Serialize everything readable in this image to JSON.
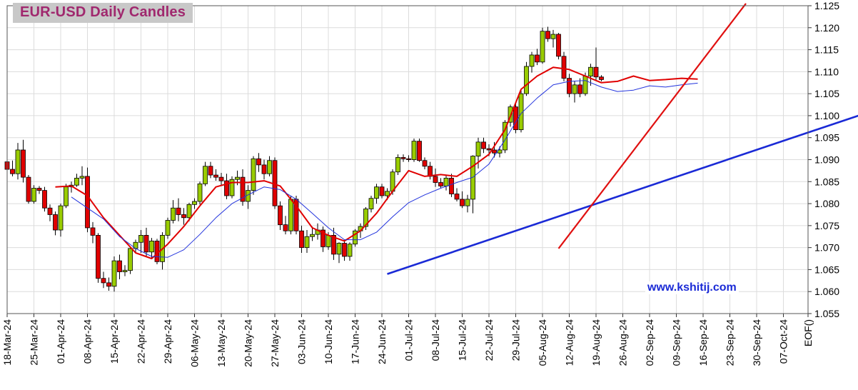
{
  "chart_data": {
    "type": "candlestick",
    "title": "EUR-USD Daily  Candles",
    "watermark": "www.kshitij.com",
    "xlabel": "",
    "ylabel": "",
    "ylim": [
      1.055,
      1.125
    ],
    "y_ticks": [
      "1.055",
      "1.060",
      "1.065",
      "1.070",
      "1.075",
      "1.080",
      "1.085",
      "1.090",
      "1.095",
      "1.100",
      "1.105",
      "1.110",
      "1.115",
      "1.120",
      "1.125"
    ],
    "x_tick_labels": [
      "18-Mar-24",
      "25-Mar-24",
      "01-Apr-24",
      "08-Apr-24",
      "15-Apr-24",
      "22-Apr-24",
      "29-Apr-24",
      "06-May-24",
      "13-May-24",
      "20-May-24",
      "27-May-24",
      "03-Jun-24",
      "10-Jun-24",
      "17-Jun-24",
      "24-Jun-24",
      "01-Jul-24",
      "08-Jul-24",
      "15-Jul-24",
      "22-Jul-24",
      "29-Jul-24",
      "05-Aug-24",
      "12-Aug-24",
      "19-Aug-24",
      "26-Aug-24",
      "02-Sep-24",
      "09-Sep-24",
      "16-Sep-24",
      "23-Sep-24",
      "30-Sep-24",
      "07-Oct-24",
      "EOF()"
    ],
    "grid": true,
    "colors": {
      "up": "#99cc00",
      "down": "#e00000",
      "ma_fast": "#e00000",
      "ma_slow": "#2233dd",
      "trendline_blue": "#1a2ad6",
      "trendline_red": "#e01010",
      "title": "#a0286e"
    },
    "candles": [
      {
        "o": 1.0895,
        "h": 1.0918,
        "l": 1.0868,
        "c": 1.0878
      },
      {
        "o": 1.0878,
        "h": 1.0898,
        "l": 1.0862,
        "c": 1.0868
      },
      {
        "o": 1.0868,
        "h": 1.0938,
        "l": 1.0855,
        "c": 1.0922
      },
      {
        "o": 1.0922,
        "h": 1.0945,
        "l": 1.0848,
        "c": 1.086
      },
      {
        "o": 1.086,
        "h": 1.0865,
        "l": 1.08,
        "c": 1.0805
      },
      {
        "o": 1.0805,
        "h": 1.0842,
        "l": 1.08,
        "c": 1.0835
      },
      {
        "o": 1.0835,
        "h": 1.084,
        "l": 1.0822,
        "c": 1.083
      },
      {
        "o": 1.083,
        "h": 1.0838,
        "l": 1.0782,
        "c": 1.079
      },
      {
        "o": 1.079,
        "h": 1.0798,
        "l": 1.076,
        "c": 1.0775
      },
      {
        "o": 1.0775,
        "h": 1.0782,
        "l": 1.0728,
        "c": 1.074
      },
      {
        "o": 1.074,
        "h": 1.08,
        "l": 1.0725,
        "c": 1.0795
      },
      {
        "o": 1.0795,
        "h": 1.0845,
        "l": 1.079,
        "c": 1.0838
      },
      {
        "o": 1.0838,
        "h": 1.085,
        "l": 1.0825,
        "c": 1.0842
      },
      {
        "o": 1.0842,
        "h": 1.0868,
        "l": 1.0838,
        "c": 1.0858
      },
      {
        "o": 1.0858,
        "h": 1.0885,
        "l": 1.0842,
        "c": 1.0862
      },
      {
        "o": 1.0862,
        "h": 1.0882,
        "l": 1.0735,
        "c": 1.0745
      },
      {
        "o": 1.0745,
        "h": 1.0758,
        "l": 1.071,
        "c": 1.0728
      },
      {
        "o": 1.0728,
        "h": 1.0733,
        "l": 1.062,
        "c": 1.063
      },
      {
        "o": 1.063,
        "h": 1.0645,
        "l": 1.0608,
        "c": 1.062
      },
      {
        "o": 1.062,
        "h": 1.0632,
        "l": 1.0602,
        "c": 1.0612
      },
      {
        "o": 1.0612,
        "h": 1.068,
        "l": 1.06,
        "c": 1.067
      },
      {
        "o": 1.067,
        "h": 1.0684,
        "l": 1.0628,
        "c": 1.0645
      },
      {
        "o": 1.0645,
        "h": 1.066,
        "l": 1.0635,
        "c": 1.0648
      },
      {
        "o": 1.0648,
        "h": 1.0702,
        "l": 1.064,
        "c": 1.0698
      },
      {
        "o": 1.0698,
        "h": 1.0718,
        "l": 1.0688,
        "c": 1.0712
      },
      {
        "o": 1.0712,
        "h": 1.074,
        "l": 1.0688,
        "c": 1.0728
      },
      {
        "o": 1.0728,
        "h": 1.0745,
        "l": 1.068,
        "c": 1.069
      },
      {
        "o": 1.069,
        "h": 1.0722,
        "l": 1.0675,
        "c": 1.0715
      },
      {
        "o": 1.0715,
        "h": 1.072,
        "l": 1.0662,
        "c": 1.0668
      },
      {
        "o": 1.0668,
        "h": 1.0735,
        "l": 1.065,
        "c": 1.0728
      },
      {
        "o": 1.0728,
        "h": 1.0768,
        "l": 1.072,
        "c": 1.0762
      },
      {
        "o": 1.0762,
        "h": 1.0808,
        "l": 1.0755,
        "c": 1.079
      },
      {
        "o": 1.079,
        "h": 1.0812,
        "l": 1.076,
        "c": 1.0775
      },
      {
        "o": 1.0775,
        "h": 1.079,
        "l": 1.0752,
        "c": 1.0768
      },
      {
        "o": 1.0768,
        "h": 1.0802,
        "l": 1.076,
        "c": 1.0798
      },
      {
        "o": 1.0798,
        "h": 1.0812,
        "l": 1.0788,
        "c": 1.0805
      },
      {
        "o": 1.0805,
        "h": 1.085,
        "l": 1.0798,
        "c": 1.0845
      },
      {
        "o": 1.0845,
        "h": 1.0895,
        "l": 1.084,
        "c": 1.0885
      },
      {
        "o": 1.0885,
        "h": 1.0895,
        "l": 1.0858,
        "c": 1.0865
      },
      {
        "o": 1.0865,
        "h": 1.0878,
        "l": 1.0852,
        "c": 1.086
      },
      {
        "o": 1.086,
        "h": 1.087,
        "l": 1.084,
        "c": 1.0852
      },
      {
        "o": 1.0852,
        "h": 1.0868,
        "l": 1.081,
        "c": 1.0818
      },
      {
        "o": 1.0818,
        "h": 1.0862,
        "l": 1.0812,
        "c": 1.0855
      },
      {
        "o": 1.0855,
        "h": 1.0875,
        "l": 1.0842,
        "c": 1.086
      },
      {
        "o": 1.086,
        "h": 1.0878,
        "l": 1.0795,
        "c": 1.0805
      },
      {
        "o": 1.0805,
        "h": 1.0842,
        "l": 1.0788,
        "c": 1.083
      },
      {
        "o": 1.083,
        "h": 1.0908,
        "l": 1.082,
        "c": 1.0902
      },
      {
        "o": 1.0902,
        "h": 1.0915,
        "l": 1.0872,
        "c": 1.0888
      },
      {
        "o": 1.0888,
        "h": 1.09,
        "l": 1.0855,
        "c": 1.0868
      },
      {
        "o": 1.0868,
        "h": 1.0908,
        "l": 1.0862,
        "c": 1.0898
      },
      {
        "o": 1.0898,
        "h": 1.0905,
        "l": 1.0788,
        "c": 1.0795
      },
      {
        "o": 1.0795,
        "h": 1.0805,
        "l": 1.074,
        "c": 1.0752
      },
      {
        "o": 1.0752,
        "h": 1.0772,
        "l": 1.073,
        "c": 1.0738
      },
      {
        "o": 1.0738,
        "h": 1.0818,
        "l": 1.073,
        "c": 1.081
      },
      {
        "o": 1.081,
        "h": 1.0818,
        "l": 1.073,
        "c": 1.0738
      },
      {
        "o": 1.0738,
        "h": 1.075,
        "l": 1.0688,
        "c": 1.07
      },
      {
        "o": 1.07,
        "h": 1.074,
        "l": 1.0688,
        "c": 1.0725
      },
      {
        "o": 1.0725,
        "h": 1.0748,
        "l": 1.0715,
        "c": 1.073
      },
      {
        "o": 1.073,
        "h": 1.0755,
        "l": 1.0718,
        "c": 1.074
      },
      {
        "o": 1.074,
        "h": 1.0748,
        "l": 1.069,
        "c": 1.0702
      },
      {
        "o": 1.0702,
        "h": 1.0735,
        "l": 1.0695,
        "c": 1.0728
      },
      {
        "o": 1.0728,
        "h": 1.0745,
        "l": 1.0672,
        "c": 1.0685
      },
      {
        "o": 1.0685,
        "h": 1.0712,
        "l": 1.0665,
        "c": 1.071
      },
      {
        "o": 1.071,
        "h": 1.0718,
        "l": 1.067,
        "c": 1.068
      },
      {
        "o": 1.068,
        "h": 1.0712,
        "l": 1.067,
        "c": 1.0708
      },
      {
        "o": 1.0708,
        "h": 1.0742,
        "l": 1.0702,
        "c": 1.0738
      },
      {
        "o": 1.0738,
        "h": 1.0755,
        "l": 1.0722,
        "c": 1.0748
      },
      {
        "o": 1.0748,
        "h": 1.0792,
        "l": 1.074,
        "c": 1.0788
      },
      {
        "o": 1.0788,
        "h": 1.0818,
        "l": 1.078,
        "c": 1.0812
      },
      {
        "o": 1.0812,
        "h": 1.0845,
        "l": 1.08,
        "c": 1.0838
      },
      {
        "o": 1.0838,
        "h": 1.0845,
        "l": 1.0812,
        "c": 1.0818
      },
      {
        "o": 1.0818,
        "h": 1.0835,
        "l": 1.0808,
        "c": 1.0828
      },
      {
        "o": 1.0828,
        "h": 1.0878,
        "l": 1.082,
        "c": 1.0872
      },
      {
        "o": 1.0872,
        "h": 1.0912,
        "l": 1.0865,
        "c": 1.0905
      },
      {
        "o": 1.0905,
        "h": 1.0912,
        "l": 1.0895,
        "c": 1.0902
      },
      {
        "o": 1.0902,
        "h": 1.091,
        "l": 1.0895,
        "c": 1.09
      },
      {
        "o": 1.09,
        "h": 1.0948,
        "l": 1.0895,
        "c": 1.0942
      },
      {
        "o": 1.0942,
        "h": 1.0948,
        "l": 1.0895,
        "c": 1.0898
      },
      {
        "o": 1.0898,
        "h": 1.0905,
        "l": 1.0878,
        "c": 1.0885
      },
      {
        "o": 1.0885,
        "h": 1.0895,
        "l": 1.0855,
        "c": 1.0862
      },
      {
        "o": 1.0862,
        "h": 1.088,
        "l": 1.0838,
        "c": 1.0848
      },
      {
        "o": 1.0848,
        "h": 1.0858,
        "l": 1.0835,
        "c": 1.084
      },
      {
        "o": 1.084,
        "h": 1.0865,
        "l": 1.083,
        "c": 1.0858
      },
      {
        "o": 1.0858,
        "h": 1.0868,
        "l": 1.0815,
        "c": 1.0822
      },
      {
        "o": 1.0822,
        "h": 1.0835,
        "l": 1.0805,
        "c": 1.081
      },
      {
        "o": 1.081,
        "h": 1.0828,
        "l": 1.079,
        "c": 1.0795
      },
      {
        "o": 1.0795,
        "h": 1.082,
        "l": 1.078,
        "c": 1.081
      },
      {
        "o": 1.081,
        "h": 1.091,
        "l": 1.0778,
        "c": 1.0908
      },
      {
        "o": 1.0908,
        "h": 1.095,
        "l": 1.088,
        "c": 1.094
      },
      {
        "o": 1.094,
        "h": 1.095,
        "l": 1.0915,
        "c": 1.0925
      },
      {
        "o": 1.0925,
        "h": 1.0935,
        "l": 1.0908,
        "c": 1.0922
      },
      {
        "o": 1.0922,
        "h": 1.094,
        "l": 1.0905,
        "c": 1.0915
      },
      {
        "o": 1.0915,
        "h": 1.093,
        "l": 1.0905,
        "c": 1.0922
      },
      {
        "o": 1.0922,
        "h": 1.099,
        "l": 1.0915,
        "c": 1.0985
      },
      {
        "o": 1.0985,
        "h": 1.1025,
        "l": 1.0975,
        "c": 1.102
      },
      {
        "o": 1.102,
        "h": 1.1028,
        "l": 1.096,
        "c": 1.0968
      },
      {
        "o": 1.0968,
        "h": 1.106,
        "l": 1.0962,
        "c": 1.105
      },
      {
        "o": 1.105,
        "h": 1.1122,
        "l": 1.1045,
        "c": 1.1112
      },
      {
        "o": 1.1112,
        "h": 1.1145,
        "l": 1.1098,
        "c": 1.1138
      },
      {
        "o": 1.1138,
        "h": 1.1152,
        "l": 1.1115,
        "c": 1.1122
      },
      {
        "o": 1.1122,
        "h": 1.12,
        "l": 1.1118,
        "c": 1.1192
      },
      {
        "o": 1.1192,
        "h": 1.1202,
        "l": 1.1168,
        "c": 1.1175
      },
      {
        "o": 1.1175,
        "h": 1.1195,
        "l": 1.1155,
        "c": 1.1185
      },
      {
        "o": 1.1185,
        "h": 1.1188,
        "l": 1.1128,
        "c": 1.1135
      },
      {
        "o": 1.1135,
        "h": 1.1145,
        "l": 1.1078,
        "c": 1.1085
      },
      {
        "o": 1.1085,
        "h": 1.1095,
        "l": 1.1042,
        "c": 1.105
      },
      {
        "o": 1.105,
        "h": 1.1078,
        "l": 1.103,
        "c": 1.107
      },
      {
        "o": 1.107,
        "h": 1.1085,
        "l": 1.1042,
        "c": 1.105
      },
      {
        "o": 1.105,
        "h": 1.1098,
        "l": 1.1045,
        "c": 1.109
      },
      {
        "o": 1.109,
        "h": 1.1118,
        "l": 1.1068,
        "c": 1.111
      },
      {
        "o": 1.111,
        "h": 1.1155,
        "l": 1.108,
        "c": 1.1088
      },
      {
        "o": 1.1088,
        "h": 1.1092,
        "l": 1.1078,
        "c": 1.1082
      }
    ],
    "series": [
      {
        "line": "red-moving-average",
        "x": [
          9,
          12,
          15,
          18,
          21,
          24,
          27,
          30,
          33,
          36,
          39,
          42,
          45,
          48,
          51,
          54,
          57,
          60,
          63,
          66,
          69,
          72,
          75,
          78,
          81,
          84,
          87,
          90,
          93,
          96,
          99,
          102,
          105,
          108,
          111,
          114,
          117,
          120,
          123,
          126,
          129
        ],
        "y": [
          1.0838,
          1.084,
          1.0818,
          1.0768,
          1.0728,
          1.0688,
          1.0675,
          1.0708,
          1.0748,
          1.0795,
          1.0838,
          1.0848,
          1.0848,
          1.0852,
          1.084,
          1.0795,
          1.0745,
          1.0728,
          1.0715,
          1.0738,
          1.0778,
          1.0828,
          1.0875,
          1.0862,
          1.0866,
          1.0862,
          1.0885,
          1.0912,
          1.0968,
          1.106,
          1.109,
          1.111,
          1.1105,
          1.109,
          1.1075,
          1.1078,
          1.109,
          1.108,
          1.1082,
          1.1085,
          1.1083
        ]
      },
      {
        "line": "blue-moving-average",
        "x": [
          12,
          18,
          21,
          24,
          27,
          30,
          33,
          36,
          39,
          42,
          45,
          48,
          51,
          54,
          57,
          60,
          63,
          66,
          69,
          72,
          75,
          78,
          81,
          84,
          87,
          90,
          93,
          96,
          99,
          102,
          105,
          108,
          111,
          114,
          117,
          120,
          123,
          126,
          129
        ],
        "y": [
          1.0815,
          1.0765,
          1.0725,
          1.0698,
          1.068,
          1.0678,
          1.0695,
          1.073,
          1.0768,
          1.08,
          1.082,
          1.0838,
          1.0832,
          1.081,
          1.0778,
          1.0745,
          1.0718,
          1.0718,
          1.0735,
          1.077,
          1.0802,
          1.082,
          1.0835,
          1.0848,
          1.086,
          1.089,
          1.0945,
          1.1005,
          1.104,
          1.107,
          1.1078,
          1.108,
          1.1065,
          1.1055,
          1.1058,
          1.1068,
          1.1065,
          1.107,
          1.1074
        ]
      },
      {
        "line": "blue-support-trendline",
        "x": [
          71,
          159
        ],
        "y": [
          1.064,
          1.1
        ]
      },
      {
        "line": "red-up-trendline",
        "x": [
          103,
          138
        ],
        "y": [
          1.0698,
          1.1255
        ]
      }
    ]
  }
}
